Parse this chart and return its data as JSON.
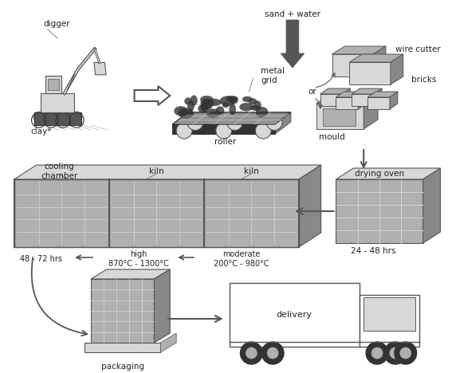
{
  "bg_color": "#ffffff",
  "text_color": "#222222",
  "labels": {
    "digger": "digger",
    "clay": "clay*",
    "metal_grid": "metal\ngrid",
    "roller": "roller",
    "sand_water": "sand + water",
    "wire_cutter": "wire cutter",
    "bricks": "bricks",
    "or": "or",
    "mould": "mould",
    "drying_oven": "drying oven",
    "drying_time": "24 - 48 hrs",
    "cooling_chamber": "cooling\nchamber",
    "kiln1": "kiln",
    "kiln2": "kiln",
    "cooling_time": "48 - 72 hrs",
    "high_temp": "high\n870°C - 1300°C",
    "moderate_temp": "moderate\n200°C - 980°C",
    "packaging": "packaging",
    "delivery": "delivery"
  },
  "gray_light": "#d8d8d8",
  "gray_mid": "#b0b0b0",
  "gray_dark": "#888888",
  "gray_darker": "#555555",
  "gray_darkest": "#333333"
}
